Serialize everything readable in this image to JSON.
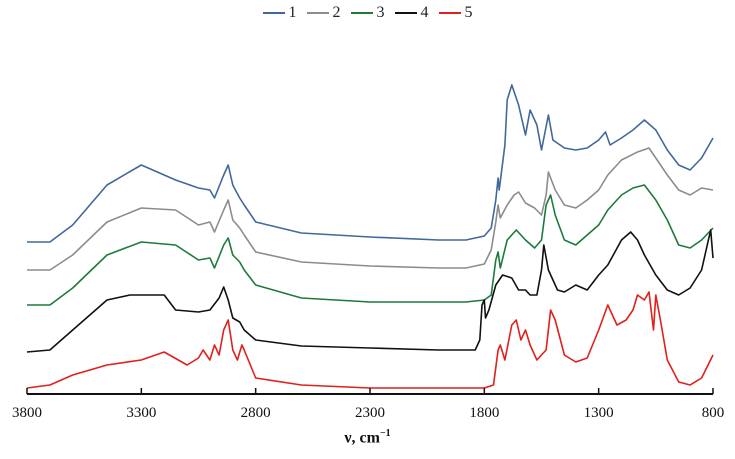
{
  "chart_data": {
    "type": "line",
    "title": "",
    "xlabel": "ν, cm⁻¹",
    "xlabel_base": "ν, cm",
    "xlabel_sup": "−1",
    "ylabel": "",
    "xlim": [
      3800,
      800
    ],
    "x_reversed": true,
    "y_axis_visible": false,
    "grid": false,
    "legend_position": "top-center",
    "x_ticks": [
      3800,
      3300,
      2800,
      2300,
      1800,
      1300,
      800
    ],
    "x_tick_labels": [
      "3800",
      "3300",
      "2800",
      "2300",
      "1800",
      "1300",
      "800"
    ],
    "series": [
      {
        "name": "1",
        "color": "#41689c",
        "points": [
          [
            3800,
            242
          ],
          [
            3700,
            242
          ],
          [
            3600,
            225
          ],
          [
            3450,
            185
          ],
          [
            3300,
            165
          ],
          [
            3150,
            180
          ],
          [
            3050,
            188
          ],
          [
            3000,
            190
          ],
          [
            2980,
            198
          ],
          [
            2940,
            175
          ],
          [
            2920,
            165
          ],
          [
            2900,
            185
          ],
          [
            2870,
            198
          ],
          [
            2850,
            205
          ],
          [
            2800,
            222
          ],
          [
            2600,
            233
          ],
          [
            2300,
            237
          ],
          [
            2000,
            240
          ],
          [
            1880,
            240
          ],
          [
            1800,
            236
          ],
          [
            1770,
            228
          ],
          [
            1750,
            200
          ],
          [
            1740,
            178
          ],
          [
            1735,
            190
          ],
          [
            1710,
            145
          ],
          [
            1700,
            100
          ],
          [
            1680,
            85
          ],
          [
            1650,
            105
          ],
          [
            1620,
            135
          ],
          [
            1600,
            110
          ],
          [
            1570,
            125
          ],
          [
            1550,
            150
          ],
          [
            1520,
            115
          ],
          [
            1500,
            140
          ],
          [
            1450,
            148
          ],
          [
            1400,
            150
          ],
          [
            1350,
            148
          ],
          [
            1300,
            140
          ],
          [
            1270,
            132
          ],
          [
            1250,
            145
          ],
          [
            1200,
            138
          ],
          [
            1150,
            130
          ],
          [
            1100,
            120
          ],
          [
            1050,
            130
          ],
          [
            1000,
            150
          ],
          [
            950,
            165
          ],
          [
            900,
            170
          ],
          [
            850,
            158
          ],
          [
            800,
            138
          ]
        ]
      },
      {
        "name": "2",
        "color": "#8c8c8c",
        "points": [
          [
            3800,
            270
          ],
          [
            3700,
            270
          ],
          [
            3600,
            255
          ],
          [
            3450,
            222
          ],
          [
            3300,
            208
          ],
          [
            3150,
            210
          ],
          [
            3050,
            225
          ],
          [
            3000,
            222
          ],
          [
            2980,
            232
          ],
          [
            2940,
            210
          ],
          [
            2920,
            200
          ],
          [
            2900,
            220
          ],
          [
            2870,
            228
          ],
          [
            2850,
            235
          ],
          [
            2800,
            252
          ],
          [
            2600,
            262
          ],
          [
            2300,
            266
          ],
          [
            2000,
            268
          ],
          [
            1880,
            268
          ],
          [
            1800,
            264
          ],
          [
            1770,
            250
          ],
          [
            1750,
            222
          ],
          [
            1740,
            205
          ],
          [
            1730,
            218
          ],
          [
            1700,
            205
          ],
          [
            1670,
            195
          ],
          [
            1650,
            192
          ],
          [
            1620,
            203
          ],
          [
            1580,
            208
          ],
          [
            1550,
            215
          ],
          [
            1530,
            195
          ],
          [
            1520,
            172
          ],
          [
            1490,
            190
          ],
          [
            1450,
            205
          ],
          [
            1400,
            208
          ],
          [
            1350,
            200
          ],
          [
            1300,
            190
          ],
          [
            1260,
            175
          ],
          [
            1200,
            160
          ],
          [
            1130,
            152
          ],
          [
            1080,
            148
          ],
          [
            1050,
            158
          ],
          [
            1000,
            175
          ],
          [
            950,
            190
          ],
          [
            900,
            195
          ],
          [
            850,
            188
          ],
          [
            800,
            190
          ]
        ]
      },
      {
        "name": "3",
        "color": "#1e7a3c",
        "points": [
          [
            3800,
            305
          ],
          [
            3700,
            305
          ],
          [
            3600,
            288
          ],
          [
            3450,
            255
          ],
          [
            3300,
            242
          ],
          [
            3150,
            245
          ],
          [
            3050,
            260
          ],
          [
            3000,
            258
          ],
          [
            2980,
            268
          ],
          [
            2940,
            245
          ],
          [
            2920,
            238
          ],
          [
            2900,
            255
          ],
          [
            2870,
            262
          ],
          [
            2850,
            270
          ],
          [
            2800,
            285
          ],
          [
            2600,
            298
          ],
          [
            2300,
            302
          ],
          [
            2000,
            302
          ],
          [
            1880,
            302
          ],
          [
            1800,
            300
          ],
          [
            1770,
            295
          ],
          [
            1750,
            260
          ],
          [
            1740,
            252
          ],
          [
            1730,
            268
          ],
          [
            1700,
            240
          ],
          [
            1660,
            230
          ],
          [
            1620,
            240
          ],
          [
            1580,
            248
          ],
          [
            1550,
            240
          ],
          [
            1530,
            205
          ],
          [
            1510,
            195
          ],
          [
            1490,
            215
          ],
          [
            1450,
            240
          ],
          [
            1400,
            245
          ],
          [
            1350,
            235
          ],
          [
            1300,
            225
          ],
          [
            1260,
            210
          ],
          [
            1200,
            195
          ],
          [
            1150,
            188
          ],
          [
            1100,
            185
          ],
          [
            1050,
            200
          ],
          [
            1000,
            220
          ],
          [
            950,
            245
          ],
          [
            900,
            248
          ],
          [
            850,
            240
          ],
          [
            800,
            228
          ]
        ]
      },
      {
        "name": "4",
        "color": "#111111",
        "points": [
          [
            3800,
            352
          ],
          [
            3700,
            350
          ],
          [
            3600,
            330
          ],
          [
            3450,
            300
          ],
          [
            3350,
            295
          ],
          [
            3200,
            295
          ],
          [
            3150,
            310
          ],
          [
            3050,
            312
          ],
          [
            3000,
            310
          ],
          [
            2960,
            298
          ],
          [
            2940,
            287
          ],
          [
            2920,
            300
          ],
          [
            2900,
            318
          ],
          [
            2870,
            322
          ],
          [
            2850,
            330
          ],
          [
            2800,
            340
          ],
          [
            2600,
            346
          ],
          [
            2300,
            348
          ],
          [
            2000,
            350
          ],
          [
            1840,
            350
          ],
          [
            1820,
            340
          ],
          [
            1810,
            305
          ],
          [
            1800,
            300
          ],
          [
            1795,
            318
          ],
          [
            1780,
            310
          ],
          [
            1750,
            285
          ],
          [
            1720,
            275
          ],
          [
            1680,
            278
          ],
          [
            1650,
            290
          ],
          [
            1620,
            290
          ],
          [
            1600,
            295
          ],
          [
            1570,
            295
          ],
          [
            1550,
            270
          ],
          [
            1540,
            245
          ],
          [
            1520,
            270
          ],
          [
            1480,
            290
          ],
          [
            1450,
            292
          ],
          [
            1400,
            285
          ],
          [
            1350,
            290
          ],
          [
            1300,
            275
          ],
          [
            1260,
            265
          ],
          [
            1200,
            240
          ],
          [
            1160,
            232
          ],
          [
            1130,
            240
          ],
          [
            1100,
            255
          ],
          [
            1050,
            275
          ],
          [
            1000,
            290
          ],
          [
            950,
            295
          ],
          [
            900,
            288
          ],
          [
            850,
            270
          ],
          [
            820,
            240
          ],
          [
            810,
            230
          ],
          [
            800,
            258
          ]
        ]
      },
      {
        "name": "5",
        "color": "#e0201b",
        "points": [
          [
            3800,
            388
          ],
          [
            3700,
            385
          ],
          [
            3600,
            375
          ],
          [
            3450,
            365
          ],
          [
            3300,
            360
          ],
          [
            3200,
            352
          ],
          [
            3100,
            365
          ],
          [
            3050,
            358
          ],
          [
            3030,
            350
          ],
          [
            3000,
            360
          ],
          [
            2980,
            345
          ],
          [
            2960,
            355
          ],
          [
            2940,
            330
          ],
          [
            2920,
            320
          ],
          [
            2900,
            350
          ],
          [
            2880,
            360
          ],
          [
            2860,
            345
          ],
          [
            2850,
            350
          ],
          [
            2800,
            378
          ],
          [
            2600,
            385
          ],
          [
            2300,
            388
          ],
          [
            2000,
            388
          ],
          [
            1800,
            388
          ],
          [
            1760,
            385
          ],
          [
            1740,
            350
          ],
          [
            1730,
            345
          ],
          [
            1710,
            360
          ],
          [
            1680,
            325
          ],
          [
            1660,
            320
          ],
          [
            1640,
            340
          ],
          [
            1620,
            330
          ],
          [
            1600,
            345
          ],
          [
            1570,
            360
          ],
          [
            1550,
            355
          ],
          [
            1530,
            350
          ],
          [
            1510,
            310
          ],
          [
            1490,
            320
          ],
          [
            1450,
            355
          ],
          [
            1400,
            362
          ],
          [
            1350,
            358
          ],
          [
            1300,
            330
          ],
          [
            1260,
            305
          ],
          [
            1220,
            325
          ],
          [
            1180,
            320
          ],
          [
            1150,
            310
          ],
          [
            1130,
            295
          ],
          [
            1100,
            300
          ],
          [
            1080,
            292
          ],
          [
            1060,
            330
          ],
          [
            1050,
            295
          ],
          [
            1030,
            320
          ],
          [
            1000,
            360
          ],
          [
            950,
            382
          ],
          [
            900,
            385
          ],
          [
            850,
            378
          ],
          [
            800,
            355
          ]
        ]
      }
    ]
  },
  "legend": {
    "items": [
      {
        "label": "1",
        "color": "#41689c"
      },
      {
        "label": "2",
        "color": "#8c8c8c"
      },
      {
        "label": "3",
        "color": "#1e7a3c"
      },
      {
        "label": "4",
        "color": "#111111"
      },
      {
        "label": "5",
        "color": "#e0201b"
      }
    ]
  }
}
